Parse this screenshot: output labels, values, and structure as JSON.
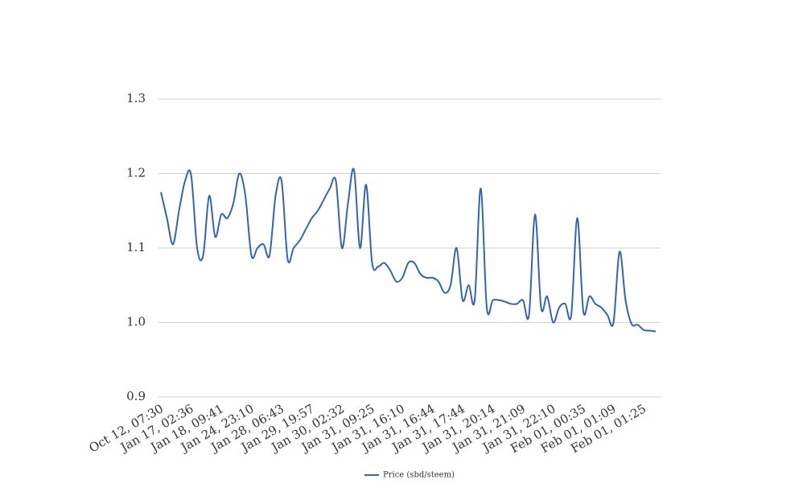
{
  "chart_data": {
    "type": "line",
    "categories": [
      "Oct 12, 07:30",
      null,
      null,
      null,
      null,
      "Jan 17, 02:36",
      null,
      null,
      null,
      null,
      "Jan 18, 09:41",
      null,
      null,
      null,
      null,
      "Jan 24, 23:10",
      null,
      null,
      null,
      null,
      "Jan 28, 06:43",
      null,
      null,
      null,
      null,
      "Jan 29, 19:57",
      null,
      null,
      null,
      null,
      "Jan 30, 02:32",
      null,
      null,
      null,
      null,
      "Jan 31, 09:25",
      null,
      null,
      null,
      null,
      "Jan 31, 16:10",
      null,
      null,
      null,
      null,
      "Jan 31, 16:44",
      null,
      null,
      null,
      null,
      "Jan 31, 17:44",
      null,
      null,
      null,
      null,
      "Jan 31, 20:14",
      null,
      null,
      null,
      null,
      "Jan 31, 21:09",
      null,
      null,
      null,
      null,
      "Jan 31, 22:10",
      null,
      null,
      null,
      null,
      "Feb 01, 00:35",
      null,
      null,
      null,
      null,
      "Feb 01, 01:09",
      null,
      null,
      null,
      null,
      "Feb 01, 01:25",
      null,
      null
    ],
    "series": [
      {
        "name": "Price (sbd/steem)",
        "color": "#3463b0",
        "values": [
          1.175,
          1.14,
          1.105,
          1.15,
          1.19,
          1.198,
          1.1,
          1.09,
          1.17,
          1.115,
          1.145,
          1.14,
          1.16,
          1.2,
          1.17,
          1.09,
          1.1,
          1.105,
          1.09,
          1.17,
          1.19,
          1.085,
          1.1,
          1.11,
          1.125,
          1.14,
          1.15,
          1.165,
          1.18,
          1.19,
          1.1,
          1.16,
          1.205,
          1.1,
          1.185,
          1.08,
          1.075,
          1.08,
          1.07,
          1.055,
          1.06,
          1.08,
          1.08,
          1.065,
          1.06,
          1.06,
          1.055,
          1.04,
          1.05,
          1.1,
          1.03,
          1.05,
          1.03,
          1.18,
          1.02,
          1.03,
          1.03,
          1.028,
          1.025,
          1.025,
          1.03,
          1.01,
          1.145,
          1.02,
          1.035,
          1.0,
          1.02,
          1.025,
          1.01,
          1.14,
          1.015,
          1.035,
          1.025,
          1.02,
          1.01,
          1.0,
          1.095,
          1.03,
          0.998,
          0.997,
          0.99,
          0.989,
          0.988
        ]
      }
    ],
    "ylim": [
      0.9,
      1.3
    ],
    "yticks": [
      0.9,
      {
        "value": 1,
        "label": "1.0"
      },
      1.1,
      1.2,
      1.3
    ],
    "grid": true,
    "legend": "bottom"
  }
}
